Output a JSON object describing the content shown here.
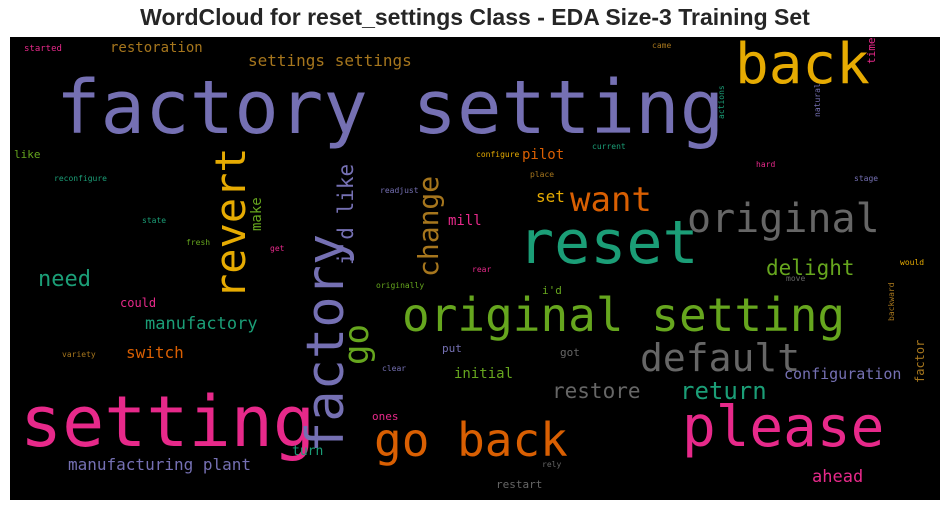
{
  "title": "WordCloud for reset_settings Class - EDA Size-3 Training Set",
  "colors": {
    "purple": "#7570b3",
    "pink": "#e7298a",
    "orange": "#d95f02",
    "teal": "#1b9e77",
    "green": "#66a61e",
    "gold": "#e6ab02",
    "brown": "#a6761d",
    "gray": "#666666"
  },
  "words": {
    "factory_setting": "factory setting",
    "setting": "setting",
    "reset": "reset",
    "original_setting": "original setting",
    "please": "please",
    "go_back": "go back",
    "back": "back",
    "factory": "factory",
    "revert": "revert",
    "original": "original",
    "default": "default",
    "want": "want",
    "go": "go",
    "change": "change",
    "id_like": "i'd like",
    "need": "need",
    "return": "return",
    "restore": "restore",
    "delight": "delight",
    "settings_settings": "settings settings",
    "manufactory": "manufactory",
    "manufacturing_plant": "manufacturing plant",
    "switch": "switch",
    "configuration": "configuration",
    "ahead": "ahead",
    "pilot": "pilot",
    "restoration": "restoration",
    "initial": "initial",
    "make": "make",
    "set": "set",
    "mill": "mill",
    "turn": "turn",
    "could": "could",
    "factor": "factor",
    "like": "like",
    "id": "i'd",
    "time": "time",
    "put": "put",
    "got": "got",
    "restart": "restart",
    "ones": "ones",
    "started": "started",
    "came": "came",
    "configure": "configure",
    "current": "current",
    "reconfigure": "reconfigure",
    "place": "place",
    "readjust": "readjust",
    "hard": "hard",
    "stage": "stage",
    "state": "state",
    "fresh": "fresh",
    "get": "get",
    "rear": "rear",
    "would": "would",
    "originally": "originally",
    "move": "move",
    "backward": "backward",
    "variety": "variety",
    "clear": "clear",
    "rely": "rely",
    "actions": "actions",
    "natural": "natural"
  }
}
